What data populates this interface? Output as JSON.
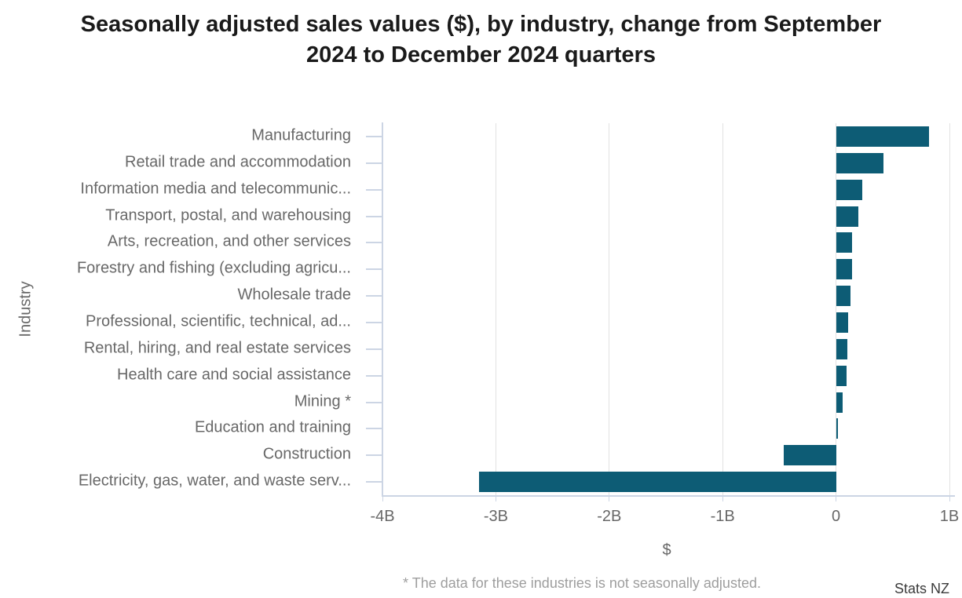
{
  "header": {
    "title_lines": [
      "Seasonally adjusted sales values ($), by industry, change from September",
      "2024 to December 2024 quarters"
    ]
  },
  "footnote": "* The data for these industries is not seasonally adjusted.",
  "source": "Stats NZ",
  "colors": {
    "bar": "#0d5c75",
    "axis_line": "#ccd5e4",
    "gridline": "#e2e2e2",
    "category_text": "#686868",
    "tick_text": "#686868",
    "title_text": "#1a1a1a",
    "footnote_text": "#9e9e9e",
    "source_text": "#3a3a3a"
  },
  "chart_data": {
    "type": "bar",
    "orientation": "horizontal",
    "title": "Seasonally adjusted sales values ($), by industry, change from September 2024 to December 2024 quarters",
    "xlabel": "$",
    "ylabel": "Industry",
    "x_unit": "billions of dollars",
    "xlim": [
      -4,
      1
    ],
    "x_tick_labels": [
      "-4B",
      "-3B",
      "-2B",
      "-1B",
      "0",
      "1B"
    ],
    "x_tick_values": [
      -4,
      -3,
      -2,
      -1,
      0,
      1
    ],
    "grid": true,
    "legend": false,
    "categories": [
      "Manufacturing",
      "Retail trade and accommodation",
      "Information media and telecommunic...",
      "Transport, postal, and warehousing",
      "Arts, recreation, and other services",
      "Forestry and fishing (excluding agricu...",
      "Wholesale trade",
      "Professional, scientific, technical, ad...",
      "Rental, hiring, and real estate services",
      "Health care and social assistance",
      "Mining *",
      "Education and training",
      "Construction",
      "Electricity, gas, water, and waste serv..."
    ],
    "values_billions": [
      0.82,
      0.42,
      0.23,
      0.2,
      0.14,
      0.14,
      0.13,
      0.11,
      0.1,
      0.09,
      0.06,
      0.02,
      -0.46,
      -3.15
    ]
  }
}
